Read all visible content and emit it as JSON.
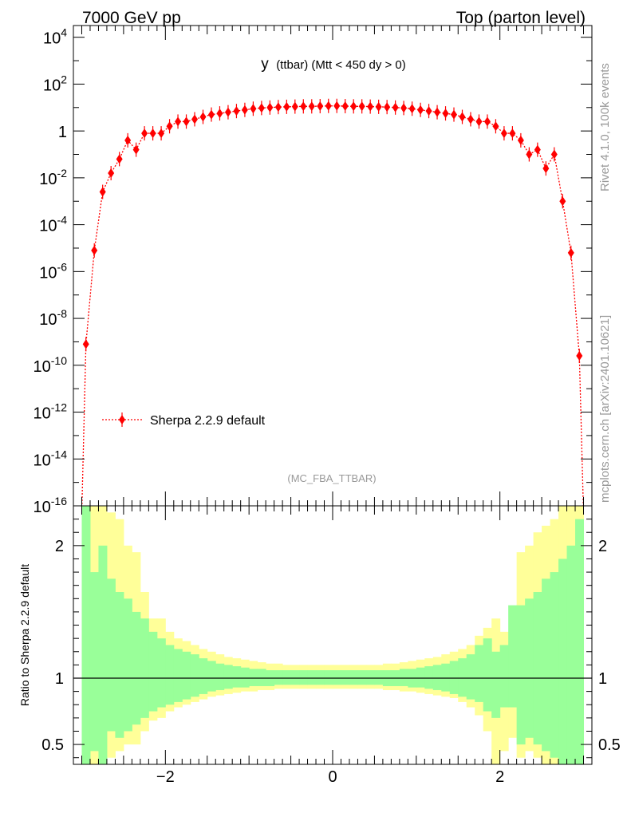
{
  "header": {
    "left": "7000 GeV pp",
    "right": "Top (parton level)"
  },
  "side": {
    "rivet": "Rivet 4.1.0,  100k events",
    "mcplots": "mcplots.cern.ch [arXiv:2401.10621]"
  },
  "chart_data": [
    {
      "type": "scatter",
      "panel": "main",
      "title_main": "y",
      "title_detail": "(ttbar) (Mtt < 450 dy > 0)",
      "analysis": "(MC_FBA_TTBAR)",
      "scale": "log",
      "ylim_exp": [
        -16,
        4.5
      ],
      "xlim": [
        -3.1,
        3.1
      ],
      "ytick_labels": [
        {
          "base": "10",
          "exp": "4",
          "e": 4
        },
        {
          "base": "10",
          "exp": "2",
          "e": 2
        },
        {
          "base": "1",
          "exp": "",
          "e": 0
        },
        {
          "base": "10",
          "exp": "-2",
          "e": -2
        },
        {
          "base": "10",
          "exp": "-4",
          "e": -4
        },
        {
          "base": "10",
          "exp": "-6",
          "e": -6
        },
        {
          "base": "10",
          "exp": "-8",
          "e": -8
        },
        {
          "base": "10",
          "exp": "-10",
          "e": -10
        },
        {
          "base": "10",
          "exp": "-12",
          "e": -12
        },
        {
          "base": "10",
          "exp": "-14",
          "e": -14
        },
        {
          "base": "10",
          "exp": "-16",
          "e": -16
        }
      ],
      "legend": "Sherpa 2.2.9 default",
      "series": [
        {
          "name": "Sherpa 2.2.9 default",
          "color": "#ff0000",
          "x": [
            -2.95,
            -2.85,
            -2.75,
            -2.65,
            -2.55,
            -2.45,
            -2.35,
            -2.25,
            -2.15,
            -2.05,
            -1.95,
            -1.85,
            -1.75,
            -1.65,
            -1.55,
            -1.45,
            -1.35,
            -1.25,
            -1.15,
            -1.05,
            -0.95,
            -0.85,
            -0.75,
            -0.65,
            -0.55,
            -0.45,
            -0.35,
            -0.25,
            -0.15,
            -0.05,
            0.05,
            0.15,
            0.25,
            0.35,
            0.45,
            0.55,
            0.65,
            0.75,
            0.85,
            0.95,
            1.05,
            1.15,
            1.25,
            1.35,
            1.45,
            1.55,
            1.65,
            1.75,
            1.85,
            1.95,
            2.05,
            2.15,
            2.25,
            2.35,
            2.45,
            2.55,
            2.65,
            2.75,
            2.85,
            2.95
          ],
          "log10y": [
            -9.1,
            -5.1,
            -2.6,
            -1.8,
            -1.2,
            -0.4,
            -0.8,
            -0.1,
            -0.1,
            -0.1,
            0.2,
            0.4,
            0.4,
            0.5,
            0.6,
            0.7,
            0.75,
            0.8,
            0.85,
            0.9,
            0.95,
            0.98,
            1.0,
            1.02,
            1.03,
            1.04,
            1.05,
            1.05,
            1.06,
            1.07,
            1.07,
            1.06,
            1.05,
            1.05,
            1.04,
            1.03,
            1.02,
            1.0,
            0.98,
            0.95,
            0.9,
            0.85,
            0.8,
            0.75,
            0.7,
            0.6,
            0.5,
            0.4,
            0.4,
            0.2,
            -0.1,
            -0.1,
            -0.4,
            -1.0,
            -0.8,
            -1.6,
            -1.0,
            -3.0,
            -5.2,
            -9.6
          ]
        }
      ]
    },
    {
      "type": "area",
      "panel": "ratio",
      "ylabel": "Ratio to Sherpa 2.2.9 default",
      "xlim": [
        -3.1,
        3.1
      ],
      "ylim": [
        0.35,
        2.3
      ],
      "xtick_labels": [
        {
          "label": "−2",
          "x": -2
        },
        {
          "label": "0",
          "x": 0
        },
        {
          "label": "2",
          "x": 2
        }
      ],
      "ytick_labels": [
        {
          "label": "0.5",
          "y": 0.5
        },
        {
          "label": "1",
          "y": 1
        },
        {
          "label": "2",
          "y": 2
        }
      ],
      "bin_edges": [
        -3.0,
        -2.9,
        -2.8,
        -2.7,
        -2.6,
        -2.5,
        -2.4,
        -2.3,
        -2.2,
        -2.1,
        -2.0,
        -1.9,
        -1.8,
        -1.7,
        -1.6,
        -1.5,
        -1.4,
        -1.3,
        -1.2,
        -1.1,
        -1.0,
        -0.9,
        -0.8,
        -0.7,
        -0.6,
        -0.5,
        -0.4,
        -0.3,
        -0.2,
        -0.1,
        0.0,
        0.1,
        0.2,
        0.3,
        0.4,
        0.5,
        0.6,
        0.7,
        0.8,
        0.9,
        1.0,
        1.1,
        1.2,
        1.3,
        1.4,
        1.5,
        1.6,
        1.7,
        1.8,
        1.9,
        2.0,
        2.1,
        2.2,
        2.3,
        2.4,
        2.5,
        2.6,
        2.7,
        2.8,
        2.9,
        3.0
      ],
      "yellow_color": "#ffff99",
      "green_color": "#99ff99",
      "yellow_hi": [
        3.0,
        2.6,
        3.0,
        2.25,
        2.2,
        2.0,
        1.95,
        1.65,
        1.45,
        1.45,
        1.35,
        1.3,
        1.28,
        1.25,
        1.22,
        1.2,
        1.18,
        1.16,
        1.15,
        1.14,
        1.13,
        1.12,
        1.11,
        1.11,
        1.1,
        1.1,
        1.1,
        1.1,
        1.1,
        1.1,
        1.1,
        1.1,
        1.1,
        1.1,
        1.1,
        1.1,
        1.11,
        1.11,
        1.12,
        1.13,
        1.14,
        1.15,
        1.16,
        1.18,
        1.2,
        1.22,
        1.25,
        1.32,
        1.38,
        1.45,
        1.35,
        1.3,
        1.95,
        2.0,
        2.1,
        2.15,
        2.2,
        2.3,
        2.6,
        3.0
      ],
      "yellow_lo": [
        0.2,
        0.3,
        0.3,
        0.4,
        0.45,
        0.5,
        0.5,
        0.6,
        0.68,
        0.7,
        0.75,
        0.78,
        0.8,
        0.82,
        0.84,
        0.86,
        0.87,
        0.88,
        0.89,
        0.9,
        0.9,
        0.91,
        0.91,
        0.92,
        0.92,
        0.92,
        0.92,
        0.92,
        0.92,
        0.92,
        0.92,
        0.92,
        0.92,
        0.92,
        0.92,
        0.92,
        0.91,
        0.91,
        0.9,
        0.9,
        0.89,
        0.88,
        0.87,
        0.86,
        0.85,
        0.82,
        0.78,
        0.72,
        0.6,
        0.2,
        0.45,
        0.55,
        0.4,
        0.45,
        0.4,
        0.35,
        0.3,
        0.25,
        0.2,
        0.2
      ],
      "green_hi": [
        2.5,
        1.8,
        2.0,
        1.75,
        1.65,
        1.6,
        1.5,
        1.45,
        1.35,
        1.3,
        1.25,
        1.22,
        1.2,
        1.18,
        1.15,
        1.13,
        1.11,
        1.1,
        1.09,
        1.08,
        1.07,
        1.07,
        1.06,
        1.06,
        1.06,
        1.06,
        1.06,
        1.06,
        1.06,
        1.06,
        1.06,
        1.06,
        1.06,
        1.06,
        1.06,
        1.06,
        1.06,
        1.06,
        1.07,
        1.07,
        1.08,
        1.09,
        1.1,
        1.11,
        1.13,
        1.15,
        1.18,
        1.25,
        1.3,
        1.2,
        1.25,
        1.55,
        1.55,
        1.6,
        1.65,
        1.75,
        1.8,
        1.9,
        2.0,
        2.2
      ],
      "green_lo": [
        0.3,
        0.45,
        0.35,
        0.6,
        0.55,
        0.6,
        0.65,
        0.7,
        0.75,
        0.78,
        0.8,
        0.82,
        0.84,
        0.86,
        0.88,
        0.9,
        0.91,
        0.92,
        0.93,
        0.93,
        0.94,
        0.94,
        0.94,
        0.95,
        0.95,
        0.95,
        0.95,
        0.95,
        0.95,
        0.95,
        0.95,
        0.95,
        0.95,
        0.95,
        0.95,
        0.95,
        0.94,
        0.94,
        0.94,
        0.93,
        0.93,
        0.92,
        0.91,
        0.9,
        0.88,
        0.86,
        0.84,
        0.82,
        0.75,
        0.7,
        0.78,
        0.78,
        0.5,
        0.55,
        0.5,
        0.45,
        0.4,
        0.35,
        0.35,
        0.3
      ],
      "reference_line": 1
    }
  ]
}
